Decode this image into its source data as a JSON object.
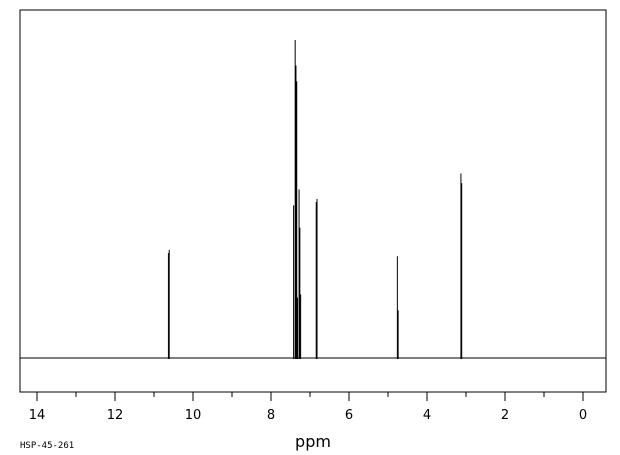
{
  "chart_data": {
    "type": "line",
    "title": "",
    "xlabel": "ppm",
    "ylabel": "",
    "xlim": [
      14.5,
      -0.5
    ],
    "x_reversed": true,
    "ylim": [
      -0.1,
      1.0
    ],
    "grid": false,
    "legend": "none",
    "x_ticks_major": [
      14,
      12,
      10,
      8,
      6,
      4,
      2,
      0
    ],
    "x_tick_labels": [
      "14",
      "12",
      "10",
      "8",
      "6",
      "4",
      "2",
      "0"
    ],
    "x_ticks_minor": [
      13,
      11,
      9,
      7,
      5,
      3,
      1
    ],
    "baseline": 0,
    "peaks": [
      {
        "x": 10.63,
        "y": 0.33
      },
      {
        "x": 10.61,
        "y": 0.34
      },
      {
        "x": 7.42,
        "y": 0.48
      },
      {
        "x": 7.38,
        "y": 1.0
      },
      {
        "x": 7.36,
        "y": 0.92
      },
      {
        "x": 7.34,
        "y": 0.87
      },
      {
        "x": 7.32,
        "y": 0.19
      },
      {
        "x": 7.28,
        "y": 0.53
      },
      {
        "x": 7.26,
        "y": 0.41
      },
      {
        "x": 7.24,
        "y": 0.2
      },
      {
        "x": 6.84,
        "y": 0.49
      },
      {
        "x": 6.82,
        "y": 0.5
      },
      {
        "x": 4.76,
        "y": 0.32
      },
      {
        "x": 4.74,
        "y": 0.15
      },
      {
        "x": 3.13,
        "y": 0.58
      },
      {
        "x": 3.11,
        "y": 0.55
      }
    ],
    "line_color": "#000000"
  },
  "footer": {
    "spectrum_code": "HSP-45-261"
  }
}
